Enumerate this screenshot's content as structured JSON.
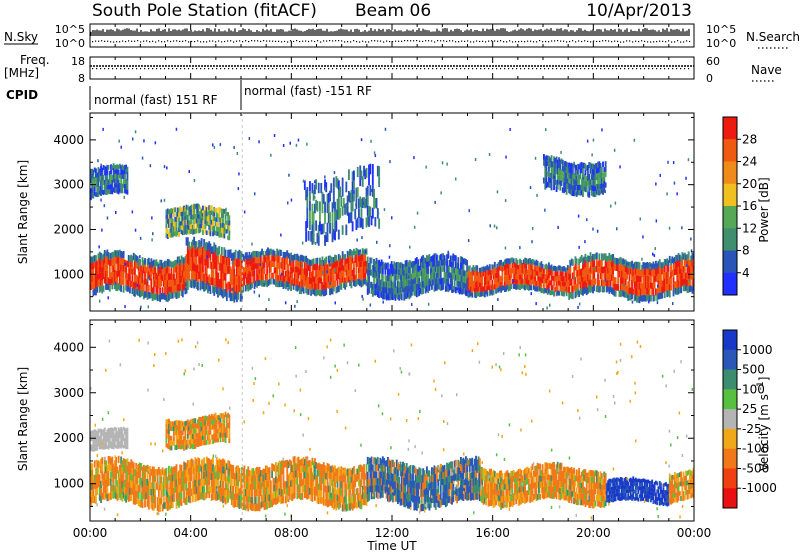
{
  "header": {
    "station": "South Pole Station (fitACF)",
    "beam": "Beam 06",
    "date": "10/Apr/2013"
  },
  "summary_panels": {
    "nsky": {
      "left_label": "N.Sky",
      "right_label": "N.Search",
      "tick_top": "10^5",
      "tick_bottom": "10^0"
    },
    "freq": {
      "left_label_1": "Freq.",
      "left_label_2": "[MHz]",
      "ticks_left": [
        "18",
        "8"
      ],
      "right_label": "Nave",
      "ticks_right": [
        "60",
        "0"
      ]
    },
    "cpid": {
      "label": "CPID",
      "segments": [
        {
          "label": "normal (fast) 151 RF",
          "start_hour": 0.0,
          "end_hour": 6.05
        },
        {
          "label": "normal (fast) -151 RF",
          "start_hour": 6.05,
          "end_hour": 24.0
        }
      ]
    }
  },
  "chart_data": [
    {
      "type": "heatmap",
      "panel": "power",
      "xlabel": "",
      "ylabel": "Slant Range [km]",
      "xlim": [
        0,
        24
      ],
      "ylim": [
        180,
        4600
      ],
      "yticks": [
        1000,
        2000,
        3000,
        4000
      ],
      "colorbar": {
        "label": "Power [dB]",
        "ticks": [
          "4",
          "8",
          "12",
          "16",
          "20",
          "24",
          "28"
        ],
        "colors": [
          "#2030ff",
          "#2a55b8",
          "#3f8f6e",
          "#55a855",
          "#f0c020",
          "#f08a18",
          "#f05a10",
          "#ee1a10"
        ]
      },
      "echo_regions": [
        {
          "h0": 0.0,
          "h1": 3.8,
          "r0": 480,
          "r1": 1450,
          "dominant": "strong"
        },
        {
          "h0": 3.8,
          "h1": 6.0,
          "r0": 500,
          "r1": 1700,
          "dominant": "strong"
        },
        {
          "h0": 6.0,
          "h1": 11.0,
          "r0": 600,
          "r1": 1500,
          "dominant": "strong"
        },
        {
          "h0": 11.0,
          "h1": 15.0,
          "r0": 500,
          "r1": 1400,
          "dominant": "weak"
        },
        {
          "h0": 15.0,
          "h1": 19.0,
          "r0": 550,
          "r1": 1300,
          "dominant": "strong"
        },
        {
          "h0": 19.0,
          "h1": 24.0,
          "r0": 450,
          "r1": 1400,
          "dominant": "strong"
        },
        {
          "h0": 0.0,
          "h1": 1.5,
          "r0": 2700,
          "r1": 3400,
          "dominant": "weak"
        },
        {
          "h0": 3.0,
          "h1": 5.5,
          "r0": 1800,
          "r1": 2500,
          "dominant": "mixed"
        },
        {
          "h0": 8.5,
          "h1": 11.5,
          "r0": 1800,
          "r1": 3300,
          "dominant": "weak"
        },
        {
          "h0": 18.0,
          "h1": 20.5,
          "r0": 2800,
          "r1": 3600,
          "dominant": "weak"
        }
      ]
    },
    {
      "type": "heatmap",
      "panel": "velocity",
      "xlabel": "Time UT",
      "ylabel": "Slant Range [km]",
      "xlim": [
        0,
        24
      ],
      "ylim": [
        180,
        4600
      ],
      "xticks": [
        "00:00",
        "04:00",
        "08:00",
        "12:00",
        "16:00",
        "20:00",
        "00:00"
      ],
      "yticks": [
        1000,
        2000,
        3000,
        4000
      ],
      "colorbar": {
        "label": "Velocity [m s^-1]",
        "ticks": [
          "1000",
          "500",
          "100",
          "25",
          "-25",
          "-100",
          "-500",
          "-1000"
        ],
        "colors": [
          "#1838c8",
          "#2a58b8",
          "#3c8c70",
          "#58c040",
          "#b4b4b4",
          "#f0a818",
          "#f07818",
          "#f04010",
          "#e81010"
        ]
      },
      "echo_regions": [
        {
          "h0": 0.0,
          "h1": 11.0,
          "r0": 500,
          "r1": 1500,
          "dominant": "negative"
        },
        {
          "h0": 11.0,
          "h1": 15.5,
          "r0": 500,
          "r1": 1500,
          "dominant": "positive"
        },
        {
          "h0": 15.5,
          "h1": 20.5,
          "r0": 550,
          "r1": 1400,
          "dominant": "negative"
        },
        {
          "h0": 20.5,
          "h1": 23.0,
          "r0": 550,
          "r1": 1100,
          "dominant": "strong-positive"
        },
        {
          "h0": 23.0,
          "h1": 24.0,
          "r0": 600,
          "r1": 1300,
          "dominant": "negative"
        },
        {
          "h0": 3.0,
          "h1": 5.5,
          "r0": 1800,
          "r1": 2500,
          "dominant": "negative"
        },
        {
          "h0": 0.0,
          "h1": 1.5,
          "r0": 1700,
          "r1": 2200,
          "dominant": "neutral"
        }
      ]
    }
  ]
}
